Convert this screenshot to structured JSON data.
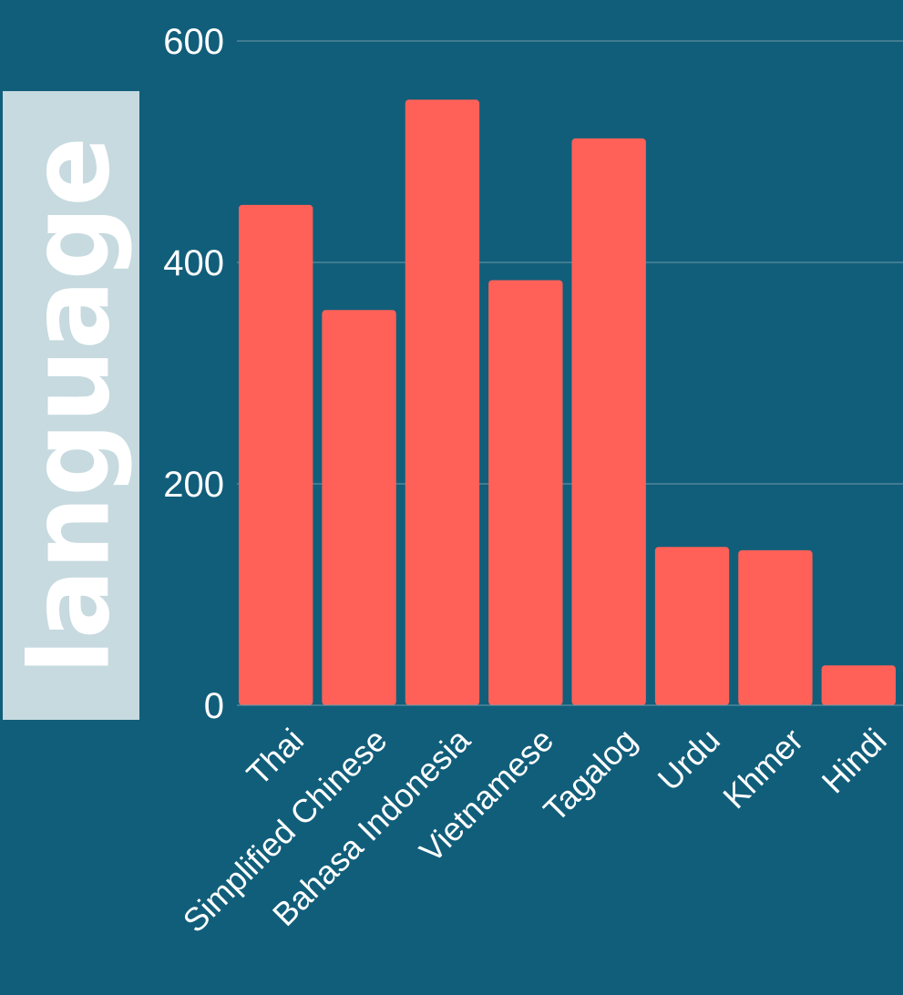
{
  "colors": {
    "background": "#115e7a",
    "bar": "#ff6158",
    "text": "#ffffff",
    "grid": "#6e9aab",
    "ylabel_box": "#c6dadf"
  },
  "chart_data": {
    "type": "bar",
    "title": "",
    "xlabel": "",
    "ylabel": "language",
    "categories": [
      "Thai",
      "Simplified Chinese",
      "Bahasa Indonesia",
      "Vietnamese",
      "Tagalog",
      "Urdu",
      "Khmer",
      "Hindi"
    ],
    "values": [
      452,
      357,
      547,
      384,
      512,
      143,
      140,
      36
    ],
    "ylim": [
      0,
      600
    ],
    "yticks": [
      "0",
      "200",
      "400",
      "600"
    ],
    "grid": true,
    "legend": "none"
  }
}
